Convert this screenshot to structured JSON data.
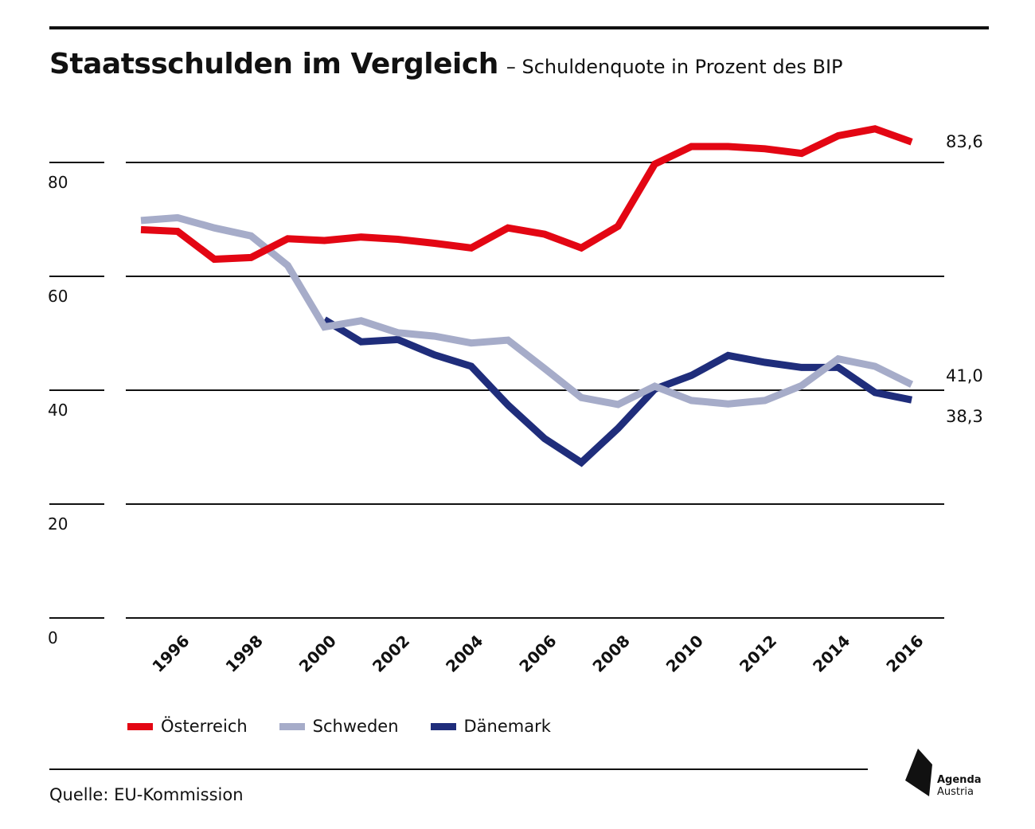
{
  "header": {
    "title": "Staatsschulden im Vergleich",
    "subtitle": "– Schuldenquote in Prozent des BIP"
  },
  "footer": {
    "source": "Quelle: EU-Kommission",
    "logo_line1": "Agenda",
    "logo_line2": "Austria"
  },
  "chart_data": {
    "type": "line",
    "title": "Staatsschulden im Vergleich",
    "subtitle": "– Schuldenquote in Prozent des BIP",
    "xlabel": "",
    "ylabel": "",
    "ylim": [
      0,
      90
    ],
    "yticks": [
      0,
      20,
      40,
      60,
      80
    ],
    "ytick_labels": [
      "0",
      "20",
      "40",
      "60",
      "80"
    ],
    "x": [
      1995,
      1996,
      1997,
      1998,
      1999,
      2000,
      2001,
      2002,
      2003,
      2004,
      2005,
      2006,
      2007,
      2008,
      2009,
      2010,
      2011,
      2012,
      2013,
      2014,
      2015,
      2016
    ],
    "xtick_labels": [
      "1996",
      "1998",
      "2000",
      "2002",
      "2004",
      "2006",
      "2008",
      "2010",
      "2012",
      "2014",
      "2016"
    ],
    "grid": true,
    "legend": "bottom-left",
    "series": [
      {
        "name": "Österreich",
        "color": "#e30613",
        "values": [
          68.2,
          67.9,
          63.0,
          63.3,
          66.6,
          66.3,
          66.9,
          66.5,
          65.8,
          65.0,
          68.5,
          67.4,
          65.0,
          68.8,
          79.7,
          82.8,
          82.8,
          82.4,
          81.6,
          84.7,
          85.9,
          83.6
        ],
        "end_label": "83,6"
      },
      {
        "name": "Schweden",
        "color": "#a6acc9",
        "values": [
          69.8,
          70.3,
          68.5,
          67.1,
          61.9,
          51.1,
          52.2,
          50.1,
          49.5,
          48.3,
          48.8,
          43.8,
          38.7,
          37.5,
          40.7,
          38.2,
          37.6,
          38.2,
          40.8,
          45.5,
          44.2,
          41.0
        ],
        "end_label": "41,0"
      },
      {
        "name": "Dänemark",
        "color": "#1f2d7b",
        "values": [
          null,
          null,
          null,
          null,
          null,
          52.4,
          48.5,
          48.9,
          46.2,
          44.2,
          37.4,
          31.5,
          27.3,
          33.3,
          40.2,
          42.6,
          46.1,
          44.9,
          44.0,
          44.0,
          39.6,
          38.3
        ],
        "end_label": "38,3"
      }
    ]
  }
}
